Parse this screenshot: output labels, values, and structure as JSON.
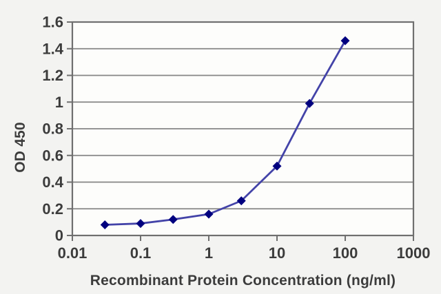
{
  "chart_data": {
    "type": "line",
    "title": "",
    "xlabel": "Recombinant Protein Concentration (ng/ml)",
    "ylabel": "OD 450",
    "x_scale": "log",
    "xlim": [
      0.01,
      1000
    ],
    "ylim": [
      0,
      1.6
    ],
    "x_tick_values": [
      0.01,
      0.1,
      1,
      10,
      100,
      1000
    ],
    "x_tick_labels": [
      "0.01",
      "0.1",
      "1",
      "10",
      "100",
      "1000"
    ],
    "y_tick_values": [
      0,
      0.2,
      0.4,
      0.6,
      0.8,
      1,
      1.2,
      1.4,
      1.6
    ],
    "y_tick_labels": [
      "0",
      "0.2",
      "0.4",
      "0.6",
      "0.8",
      "1",
      "1.2",
      "1.4",
      "1.6"
    ],
    "grid": "horizontal",
    "legend": "none",
    "series": [
      {
        "name": "standard-curve",
        "marker": "diamond",
        "x": [
          0.03,
          0.1,
          0.3,
          1,
          3,
          10,
          30,
          100
        ],
        "y": [
          0.08,
          0.09,
          0.12,
          0.16,
          0.26,
          0.52,
          0.99,
          1.46
        ]
      }
    ],
    "colors": {
      "line": "#4343a8",
      "marker": "#00007f",
      "grid": "#858585",
      "axis": "#6f6f6f",
      "tick_text": "#3c3c3c",
      "plot_bg": "#fdfdfb",
      "page_bg": "#f3f3f1"
    }
  }
}
